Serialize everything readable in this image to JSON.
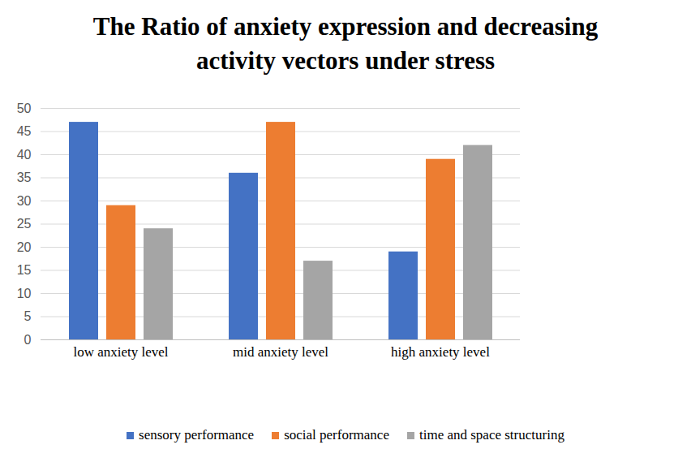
{
  "chart_data": {
    "type": "bar",
    "title": "The Ratio of anxiety expression and decreasing activity vectors under stress",
    "categories": [
      "low anxiety level",
      "mid anxiety level",
      "high anxiety level"
    ],
    "series": [
      {
        "name": "sensory performance",
        "color": "#4472c4",
        "values": [
          47,
          36,
          19
        ]
      },
      {
        "name": "social performance",
        "color": "#ed7d31",
        "values": [
          29,
          47,
          39
        ]
      },
      {
        "name": "time and space structuring",
        "color": "#a5a5a5",
        "values": [
          24,
          17,
          42
        ]
      }
    ],
    "ylim": [
      0,
      50
    ],
    "yticks": [
      0,
      5,
      10,
      15,
      20,
      25,
      30,
      35,
      40,
      45,
      50
    ],
    "grid": true,
    "legend": "bottom"
  }
}
